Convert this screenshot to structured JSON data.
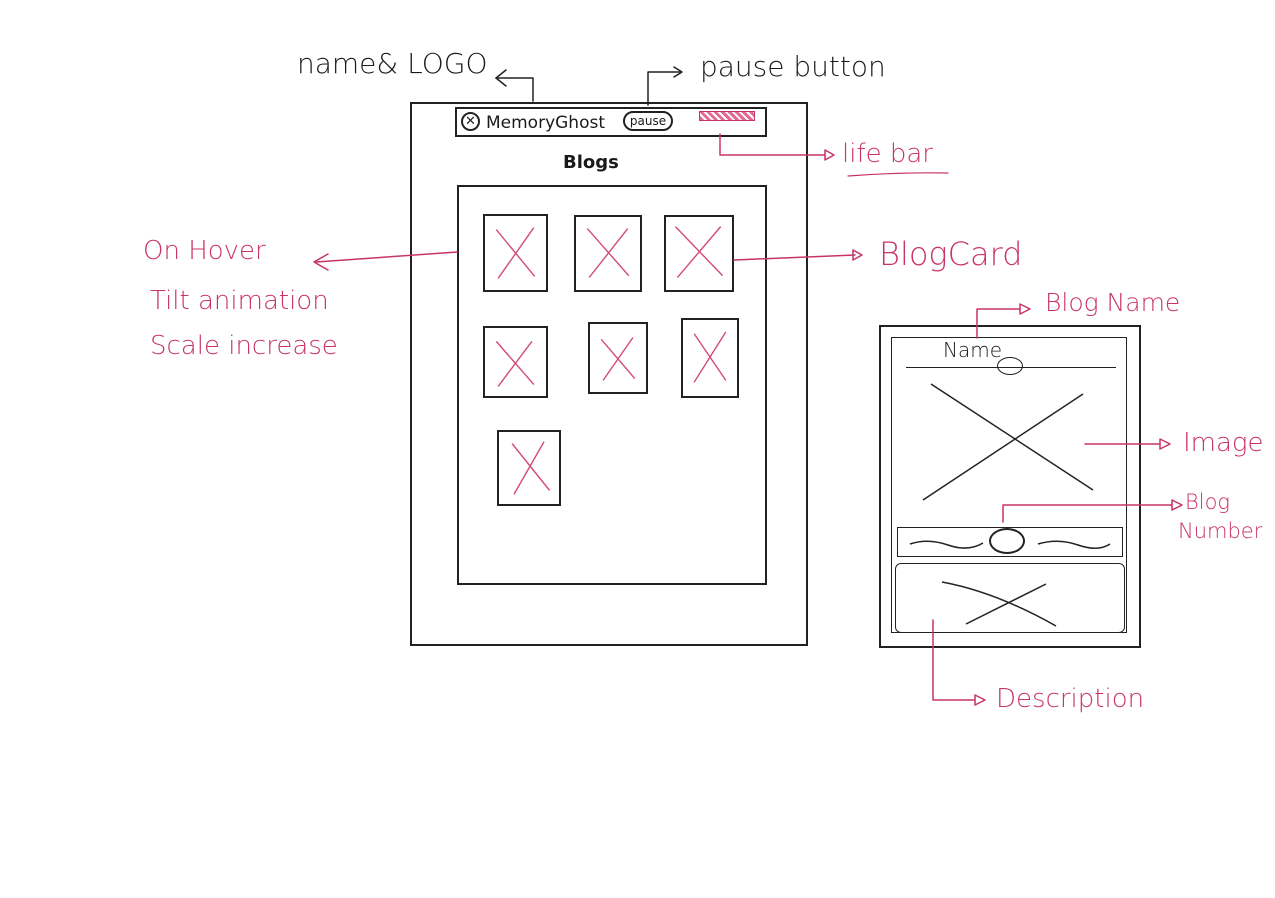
{
  "annotations": {
    "name_logo": "name& LOGO",
    "pause_button": "pause button",
    "life_bar": "life bar",
    "blog_card": "BlogCard",
    "on_hover": [
      "On Hover",
      "Tilt animation",
      "Scale increase"
    ],
    "blog_name": "Blog Name",
    "image": "Image",
    "blog_number": [
      "Blog",
      "Number"
    ],
    "description": "Description"
  },
  "app": {
    "logo_icon": "close-x-logo-icon",
    "name": "MemoryGhost",
    "pause_label": "pause",
    "section_title": "Blogs"
  },
  "detail_card": {
    "name_label": "Name"
  },
  "colors": {
    "ink": "#1a1a1a",
    "accent_pink": "#c8336a"
  }
}
